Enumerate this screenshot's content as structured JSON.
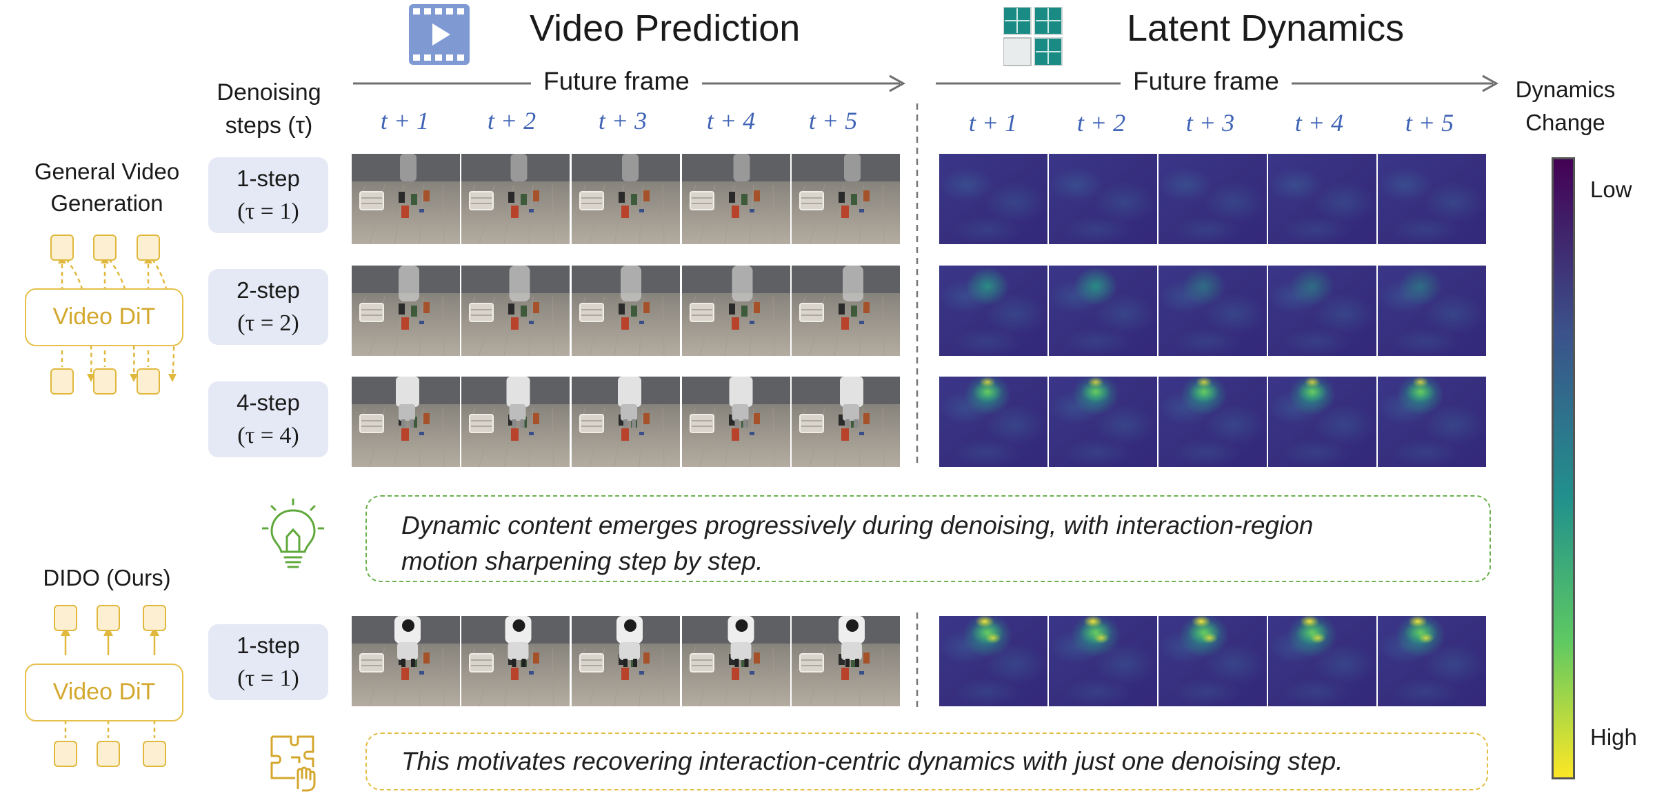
{
  "header": {
    "video_prediction_title": "Video Prediction",
    "latent_dynamics_title": "Latent Dynamics",
    "future_frame_label": "Future frame",
    "denoising_label_line1": "Denoising",
    "denoising_label_line2": "steps (τ)"
  },
  "time_labels": [
    "t + 1",
    "t + 2",
    "t + 3",
    "t + 4",
    "t + 5"
  ],
  "rows": [
    {
      "steps": "1-step",
      "tau": "(τ = 1)"
    },
    {
      "steps": "2-step",
      "tau": "(τ = 2)"
    },
    {
      "steps": "4-step",
      "tau": "(τ = 4)"
    },
    {
      "steps": "1-step",
      "tau": "(τ = 1)"
    }
  ],
  "left": {
    "general_title_line1": "General Video",
    "general_title_line2": "Generation",
    "general_dit": "Video DiT",
    "dido_title": "DIDO (Ours)",
    "dido_dit": "Video DiT"
  },
  "notes": {
    "insight_line1": "Dynamic content emerges progressively during denoising, with interaction-region",
    "insight_line2": "motion sharpening step by step.",
    "motivation": "This motivates recovering interaction-centric dynamics with just one denoising step."
  },
  "colorbar": {
    "title_line1": "Dynamics",
    "title_line2": "Change",
    "low_label": "Low",
    "high_label": "High",
    "colors": [
      "#440154",
      "#3b528b",
      "#21918c",
      "#5ec962",
      "#fde725"
    ]
  },
  "icons": [
    "film-play-icon",
    "grid-tiles-icon",
    "lightbulb-icon",
    "puzzle-hand-icon"
  ]
}
